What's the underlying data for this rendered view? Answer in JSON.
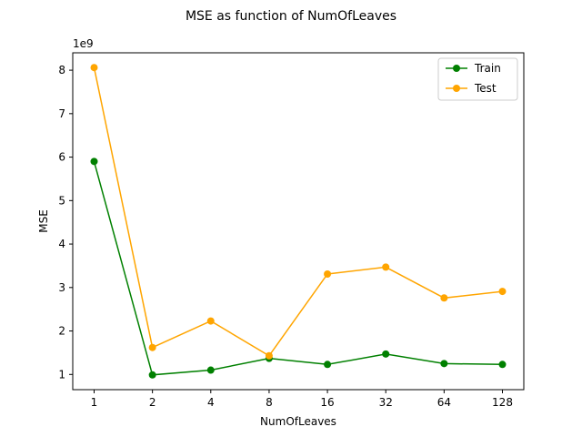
{
  "chart_data": {
    "type": "line",
    "title": "MSE as function of NumOfLeaves",
    "xlabel": "NumOfLeaves",
    "ylabel": "MSE",
    "y_multiplier_label": "1e9",
    "categories": [
      "1",
      "2",
      "4",
      "8",
      "16",
      "32",
      "64",
      "128"
    ],
    "ylim": [
      0.65,
      8.4
    ],
    "yticks": [
      1,
      2,
      3,
      4,
      5,
      6,
      7,
      8
    ],
    "grid": false,
    "legend_position": "top-right",
    "series": [
      {
        "name": "Train",
        "color": "#008000",
        "marker": "circle",
        "values": [
          5.9,
          0.99,
          1.1,
          1.37,
          1.23,
          1.47,
          1.25,
          1.23
        ]
      },
      {
        "name": "Test",
        "color": "#ffa500",
        "marker": "circle",
        "values": [
          8.06,
          1.62,
          2.23,
          1.43,
          3.31,
          3.47,
          2.76,
          2.91
        ]
      }
    ]
  }
}
